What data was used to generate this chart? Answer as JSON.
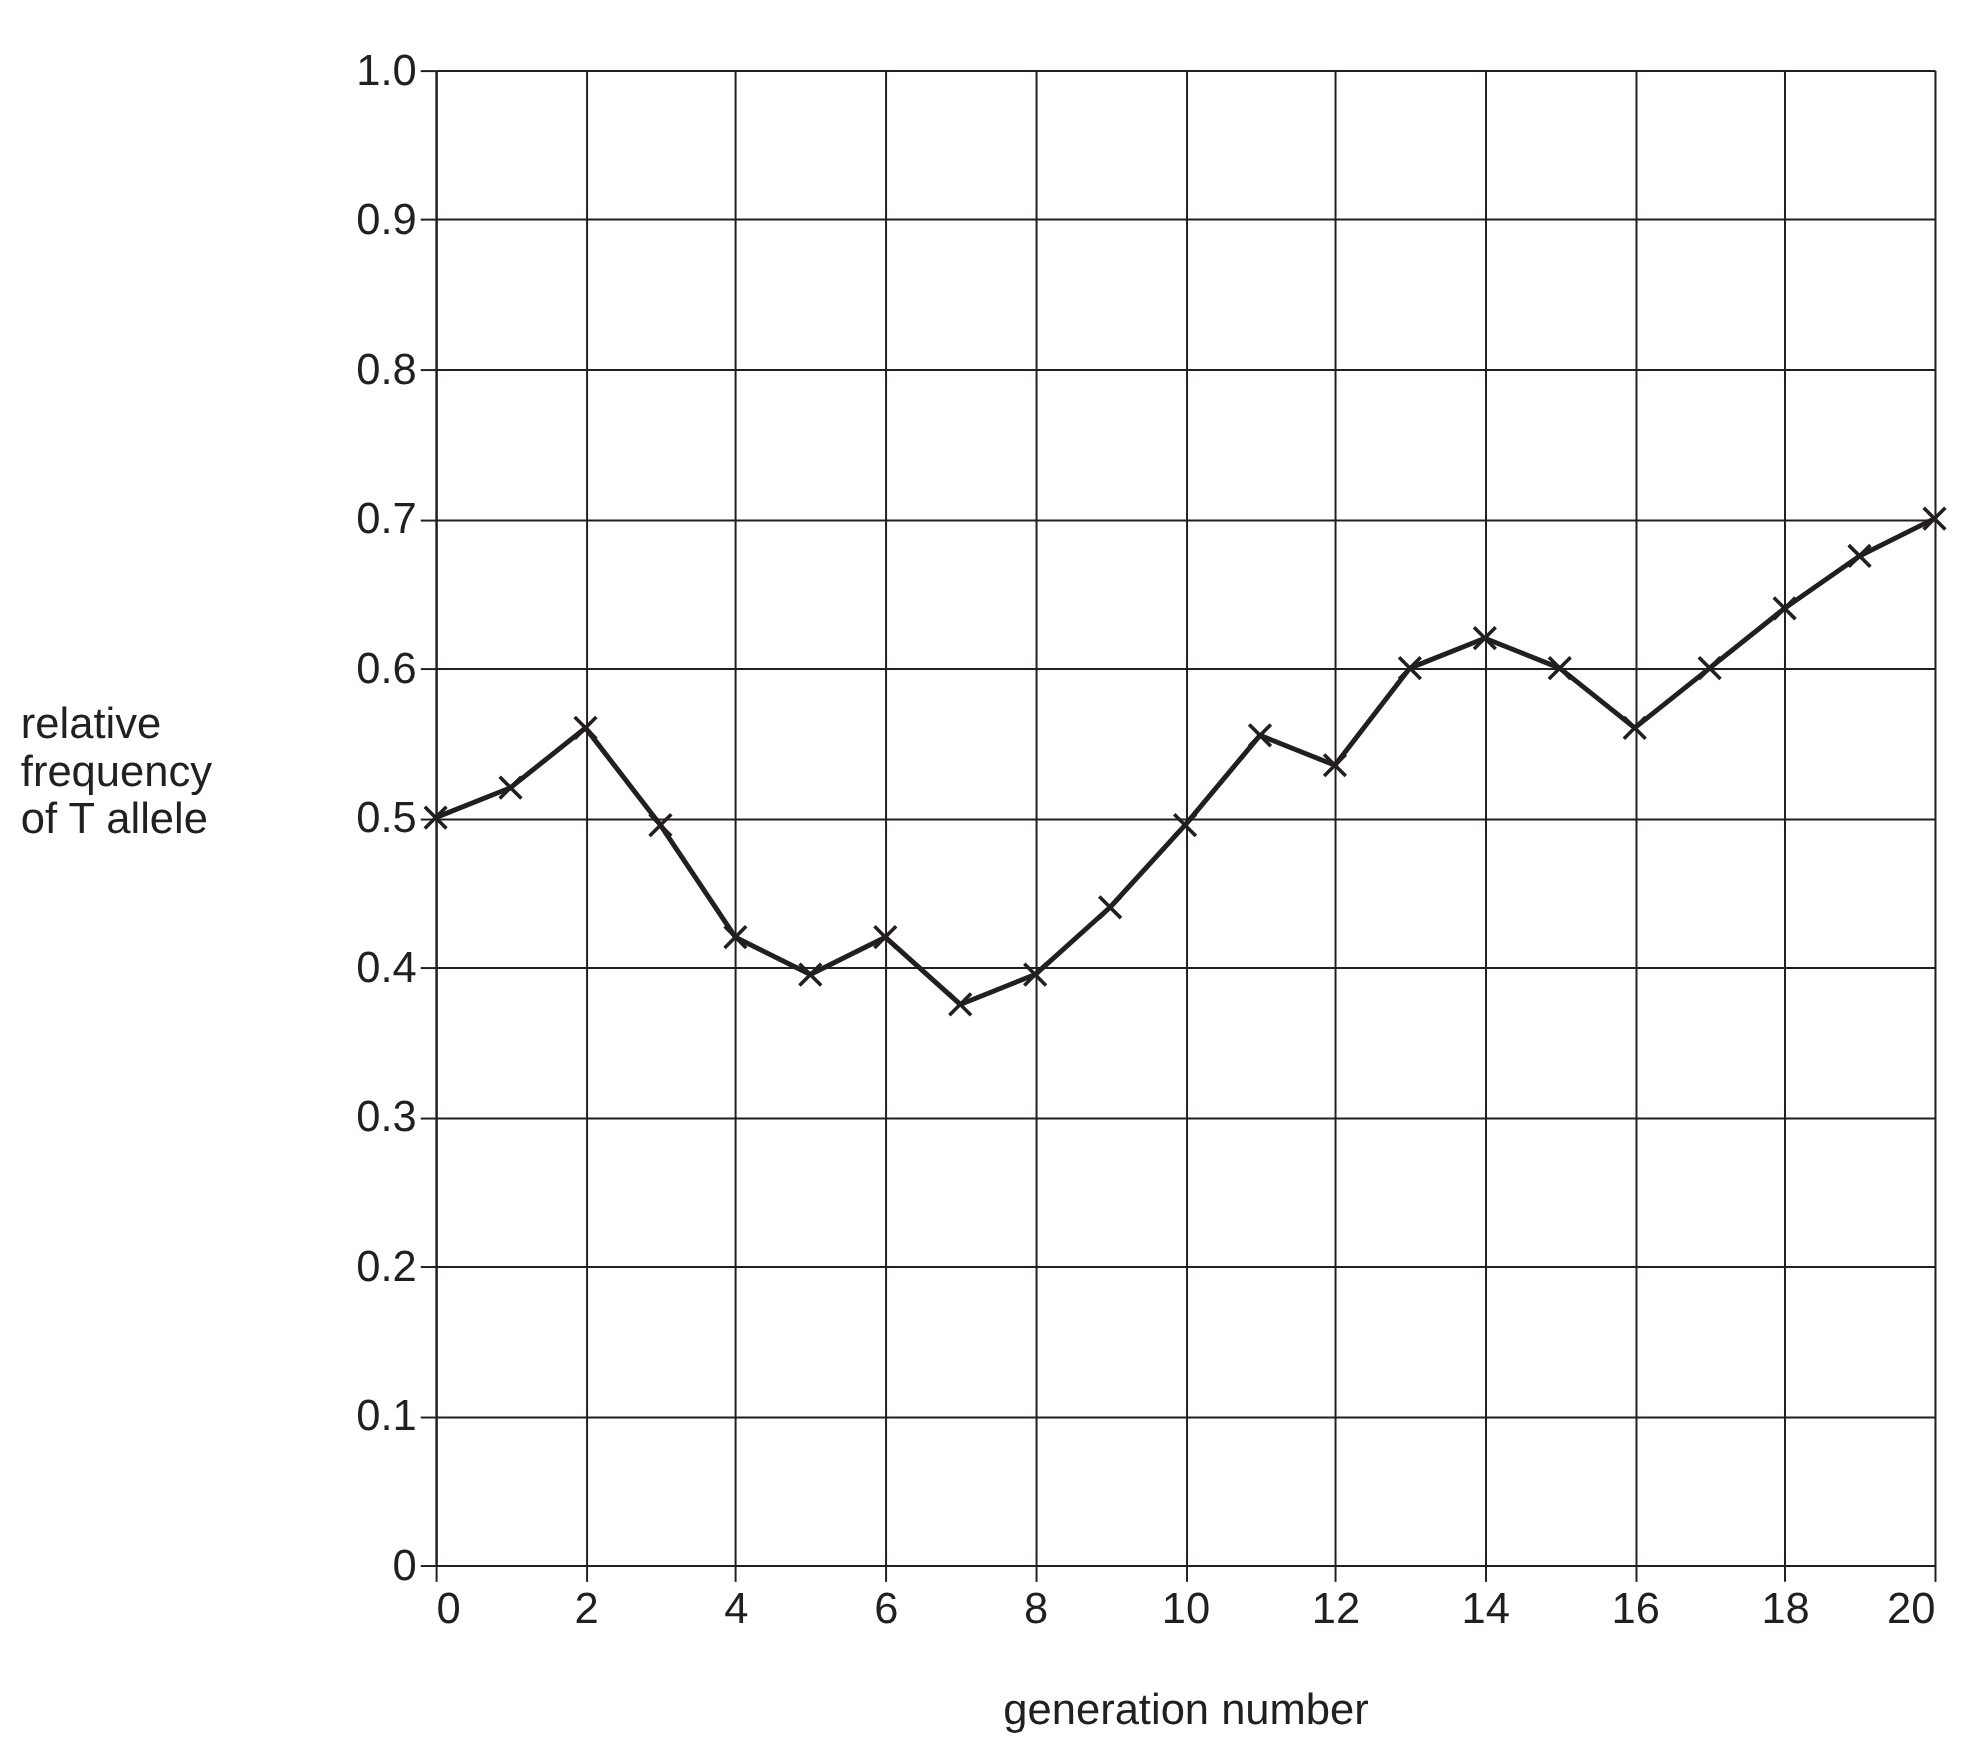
{
  "chart_data": {
    "type": "line",
    "xlabel": "generation number",
    "ylabel": "relative frequency of T allele",
    "x": [
      0,
      1,
      2,
      3,
      4,
      5,
      6,
      7,
      8,
      9,
      10,
      11,
      12,
      13,
      14,
      15,
      16,
      17,
      18,
      19,
      20
    ],
    "series": [
      {
        "color": "#231f20",
        "values": [
          0.5,
          0.52,
          0.56,
          0.495,
          0.42,
          0.395,
          0.42,
          0.375,
          0.395,
          0.44,
          0.495,
          0.555,
          0.535,
          0.6,
          0.62,
          0.6,
          0.56,
          0.6,
          0.64,
          0.675,
          0.7
        ]
      }
    ],
    "xlim": [
      0,
      20
    ],
    "xticks": [
      0,
      2,
      4,
      6,
      8,
      10,
      12,
      14,
      16,
      18,
      20
    ],
    "ylim": [
      0,
      1.0
    ],
    "yticks": [
      0,
      0.1,
      0.2,
      0.3,
      0.4,
      0.5,
      0.6,
      0.7,
      0.8,
      0.9,
      {
        "value": 1.0,
        "label": "1.0"
      }
    ],
    "grid": true,
    "marker": "cross",
    "line_style": "solid"
  }
}
